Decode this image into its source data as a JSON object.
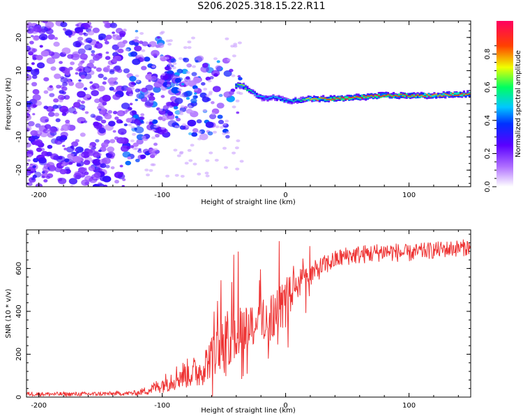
{
  "title": "S206.2025.318.15.22.R11",
  "chart_data": [
    {
      "type": "heatmap",
      "name": "spectrogram",
      "xlabel": "Height of straight line (km)",
      "ylabel": "Frequency (Hz)",
      "xlim": [
        -210,
        150
      ],
      "ylim": [
        -25,
        25
      ],
      "xticks": [
        -200,
        -100,
        0,
        100
      ],
      "yticks": [
        -20,
        -10,
        0,
        10,
        20
      ],
      "colorbar": {
        "label": "Normalized spectral amplitude",
        "range": [
          0,
          1
        ],
        "ticks": [
          0.0,
          0.2,
          0.4,
          0.6,
          0.8
        ],
        "tick_labels": [
          "0.0",
          "0.2",
          "0.4",
          "0.6",
          "0.8"
        ],
        "colors": [
          "#ffffff",
          "#7a00ff",
          "#0000ff",
          "#00c8ff",
          "#00ff60",
          "#ffff00",
          "#ff4000",
          "#ff0080"
        ]
      },
      "ridge": {
        "x": [
          -40,
          -35,
          -30,
          -25,
          -20,
          -15,
          -10,
          -5,
          0,
          10,
          20,
          40,
          60,
          80,
          100,
          120,
          150
        ],
        "y": [
          5.5,
          5.5,
          4,
          3,
          2,
          1.5,
          2,
          1.5,
          1,
          1,
          1.5,
          1.5,
          2,
          2.5,
          2.5,
          2.5,
          3
        ],
        "amplitude": [
          0.6,
          0.7,
          0.6,
          0.5,
          0.5,
          0.45,
          0.5,
          0.5,
          0.5,
          0.55,
          0.75,
          0.9,
          0.85,
          0.9,
          0.85,
          0.8,
          0.85
        ]
      }
    },
    {
      "type": "line",
      "name": "snr",
      "xlabel": "Height of straight line (km)",
      "ylabel": "SNR (10 * v/v)",
      "xlim": [
        -210,
        150
      ],
      "ylim": [
        0,
        780
      ],
      "xticks": [
        -200,
        -100,
        0,
        100
      ],
      "yticks": [
        0,
        200,
        400,
        600
      ],
      "color": "#ee3333",
      "series": [
        {
          "name": "SNR",
          "x": [
            -210,
            -190,
            -170,
            -150,
            -130,
            -120,
            -110,
            -100,
            -90,
            -80,
            -70,
            -60,
            -50,
            -40,
            -30,
            -20,
            -10,
            0,
            10,
            20,
            30,
            40,
            50,
            60,
            70,
            80,
            90,
            100,
            110,
            120,
            130,
            140,
            150
          ],
          "y": [
            15,
            14,
            14,
            15,
            17,
            20,
            35,
            60,
            90,
            110,
            120,
            190,
            260,
            300,
            340,
            360,
            390,
            440,
            520,
            570,
            610,
            640,
            660,
            665,
            670,
            680,
            675,
            670,
            680,
            685,
            690,
            695,
            700
          ],
          "noise": [
            10,
            10,
            10,
            10,
            10,
            12,
            25,
            40,
            60,
            70,
            80,
            100,
            130,
            140,
            110,
            100,
            110,
            120,
            80,
            55,
            50,
            45,
            45,
            45,
            45,
            45,
            45,
            40,
            40,
            40,
            40,
            40,
            40
          ]
        }
      ]
    }
  ]
}
